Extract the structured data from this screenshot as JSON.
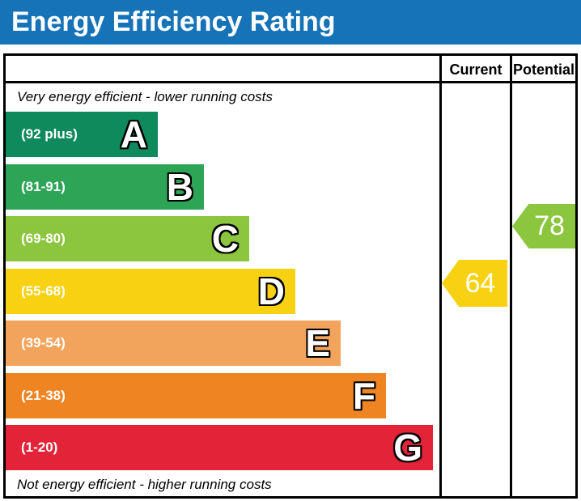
{
  "title": "Energy Efficiency Rating",
  "columns": {
    "current": "Current",
    "potential": "Potential"
  },
  "top_note": "Very energy efficient - lower running costs",
  "bottom_note": "Not energy efficient - higher running costs",
  "bands": [
    {
      "letter": "A",
      "range": "(92 plus)",
      "color": "#0E8A5C"
    },
    {
      "letter": "B",
      "range": "(81-91)",
      "color": "#2EA457"
    },
    {
      "letter": "C",
      "range": "(69-80)",
      "color": "#8CC63F"
    },
    {
      "letter": "D",
      "range": "(55-68)",
      "color": "#F7D112"
    },
    {
      "letter": "E",
      "range": "(39-54)",
      "color": "#F3A45C"
    },
    {
      "letter": "F",
      "range": "(21-38)",
      "color": "#EF8423"
    },
    {
      "letter": "G",
      "range": "(1-20)",
      "color": "#E32337"
    }
  ],
  "ratings": {
    "current": {
      "value": "64",
      "band": "D",
      "color": "#F7D112"
    },
    "potential": {
      "value": "78",
      "band": "C",
      "color": "#8CC63F"
    }
  },
  "theme": {
    "header_blue": "#1673B8",
    "border_black": "#000000"
  },
  "chart_data": {
    "type": "bar",
    "title": "Energy Efficiency Rating",
    "categories": [
      "A",
      "B",
      "C",
      "D",
      "E",
      "F",
      "G"
    ],
    "band_ranges": [
      "92 plus",
      "81-91",
      "69-80",
      "55-68",
      "39-54",
      "21-38",
      "1-20"
    ],
    "band_colors": [
      "#0E8A5C",
      "#2EA457",
      "#8CC63F",
      "#F7D112",
      "#F3A45C",
      "#EF8423",
      "#E32337"
    ],
    "bar_relative_widths": [
      188,
      245,
      301,
      358,
      414,
      470,
      528
    ],
    "series": [
      {
        "name": "Current",
        "values": [
          64
        ],
        "band": "D",
        "color": "#F7D112"
      },
      {
        "name": "Potential",
        "values": [
          78
        ],
        "band": "C",
        "color": "#8CC63F"
      }
    ],
    "annotations": [
      "Very energy efficient - lower running costs",
      "Not energy efficient - higher running costs"
    ],
    "xlabel": "",
    "ylabel": "",
    "legend_position": "right-columns",
    "grid": false
  }
}
